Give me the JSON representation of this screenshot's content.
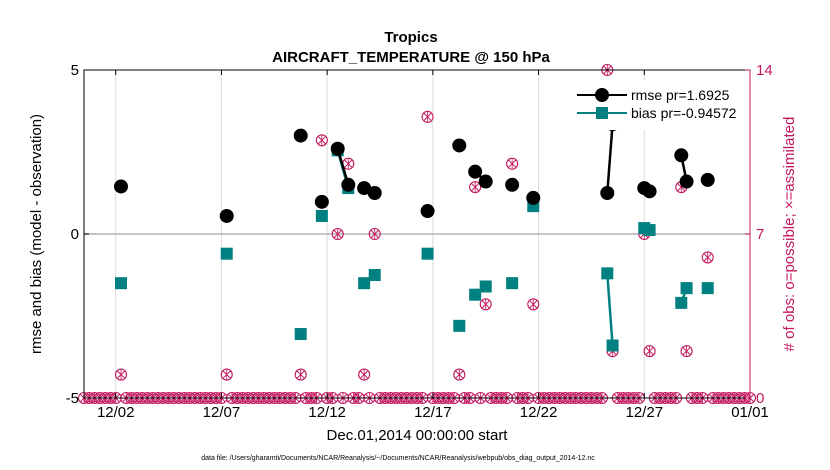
{
  "colors": {
    "rmse": "#000000",
    "bias": "#008080",
    "obs": "#c3185e",
    "grid": "#dcdcdc",
    "zero_line": "#b4b4b4"
  },
  "chart_data": {
    "type": "line",
    "title": "Tropics",
    "subtitle": "AIRCRAFT_TEMPERATURE @ 150 hPa",
    "xlabel": "Dec.01,2014 00:00:00 start",
    "ylabel": "rmse and bias (model - observation)",
    "ylabel_right": "# of obs: o=possible; ×=assimilated",
    "footer": "data file: /Users/gharamti/Documents/NCAR/Reanalysis/~/Documents/NCAR/Reanalysis/webpub/obs_diag_output_2014-12.nc",
    "xlim": [
      -0.5,
      31
    ],
    "ylim": [
      -5,
      5
    ],
    "ylim_right": [
      0,
      14
    ],
    "x_ticks": [
      1,
      6,
      11,
      16,
      21,
      26,
      31
    ],
    "x_tick_labels": [
      "12/02",
      "12/07",
      "12/12",
      "12/17",
      "12/22",
      "12/27",
      "01/01"
    ],
    "y_ticks": [
      -5,
      0,
      5
    ],
    "y_tick_labels": [
      "-5",
      "0",
      "5"
    ],
    "y_ticks_right": [
      0,
      7,
      14
    ],
    "y_tick_labels_right": [
      "0",
      "7",
      "14"
    ],
    "grid": true,
    "legend_position": "top-right",
    "series": [
      {
        "name": "rmse pr=1.6925",
        "segments": [
          [
            [
              1.25,
              1.45
            ]
          ],
          [
            [
              6.25,
              0.55
            ]
          ],
          [
            [
              9.75,
              3.0
            ]
          ],
          [
            [
              10.75,
              0.98
            ]
          ],
          [
            [
              11.5,
              2.6
            ],
            [
              12.0,
              1.5
            ]
          ],
          [
            [
              12.75,
              1.4
            ],
            [
              13.25,
              1.25
            ]
          ],
          [
            [
              15.75,
              0.7
            ]
          ],
          [
            [
              17.25,
              2.7
            ]
          ],
          [
            [
              18.0,
              1.9
            ],
            [
              18.5,
              1.6
            ]
          ],
          [
            [
              19.75,
              1.5
            ]
          ],
          [
            [
              20.75,
              1.1
            ]
          ],
          [
            [
              24.25,
              1.25
            ],
            [
              24.5,
              3.35
            ]
          ],
          [
            [
              26.0,
              1.4
            ],
            [
              26.25,
              1.3
            ]
          ],
          [
            [
              27.75,
              2.4
            ],
            [
              28.0,
              1.6
            ]
          ],
          [
            [
              29.0,
              1.65
            ]
          ]
        ]
      },
      {
        "name": "bias pr=-0.94572",
        "segments": [
          [
            [
              1.25,
              -1.5
            ]
          ],
          [
            [
              6.25,
              -0.6
            ]
          ],
          [
            [
              9.75,
              -3.05
            ]
          ],
          [
            [
              10.75,
              0.55
            ]
          ],
          [
            [
              11.5,
              2.55
            ],
            [
              12.0,
              1.4
            ]
          ],
          [
            [
              12.75,
              -1.5
            ],
            [
              13.25,
              -1.25
            ]
          ],
          [
            [
              15.75,
              -0.6
            ]
          ],
          [
            [
              17.25,
              -2.8
            ]
          ],
          [
            [
              18.0,
              -1.85
            ],
            [
              18.5,
              -1.6
            ]
          ],
          [
            [
              19.75,
              -1.5
            ]
          ],
          [
            [
              20.75,
              0.85
            ]
          ],
          [
            [
              24.25,
              -1.2
            ],
            [
              24.5,
              -3.4
            ]
          ],
          [
            [
              26.0,
              0.18
            ],
            [
              26.25,
              0.12
            ]
          ],
          [
            [
              27.75,
              -2.1
            ],
            [
              28.0,
              -1.65
            ]
          ],
          [
            [
              29.0,
              -1.65
            ]
          ]
        ]
      }
    ],
    "obs_counts": {
      "name": "# of obs (possible / assimilated)",
      "points": [
        {
          "x": 1.25,
          "count": 1
        },
        {
          "x": 6.25,
          "count": 1
        },
        {
          "x": 9.75,
          "count": 1
        },
        {
          "x": 10.75,
          "count": 11
        },
        {
          "x": 11.5,
          "count": 7
        },
        {
          "x": 12.0,
          "count": 10
        },
        {
          "x": 12.75,
          "count": 1
        },
        {
          "x": 13.25,
          "count": 7
        },
        {
          "x": 15.75,
          "count": 12
        },
        {
          "x": 17.25,
          "count": 1
        },
        {
          "x": 18.0,
          "count": 9
        },
        {
          "x": 18.5,
          "count": 4
        },
        {
          "x": 19.75,
          "count": 10
        },
        {
          "x": 20.75,
          "count": 4
        },
        {
          "x": 24.25,
          "count": 14
        },
        {
          "x": 24.5,
          "count": 2
        },
        {
          "x": 26.0,
          "count": 7
        },
        {
          "x": 26.25,
          "count": 2
        },
        {
          "x": 27.75,
          "count": 9
        },
        {
          "x": 28.0,
          "count": 2
        },
        {
          "x": 29.0,
          "count": 6
        }
      ],
      "zero_count_x_range": [
        -0.5,
        31
      ],
      "zero_count_step": 0.25
    }
  }
}
